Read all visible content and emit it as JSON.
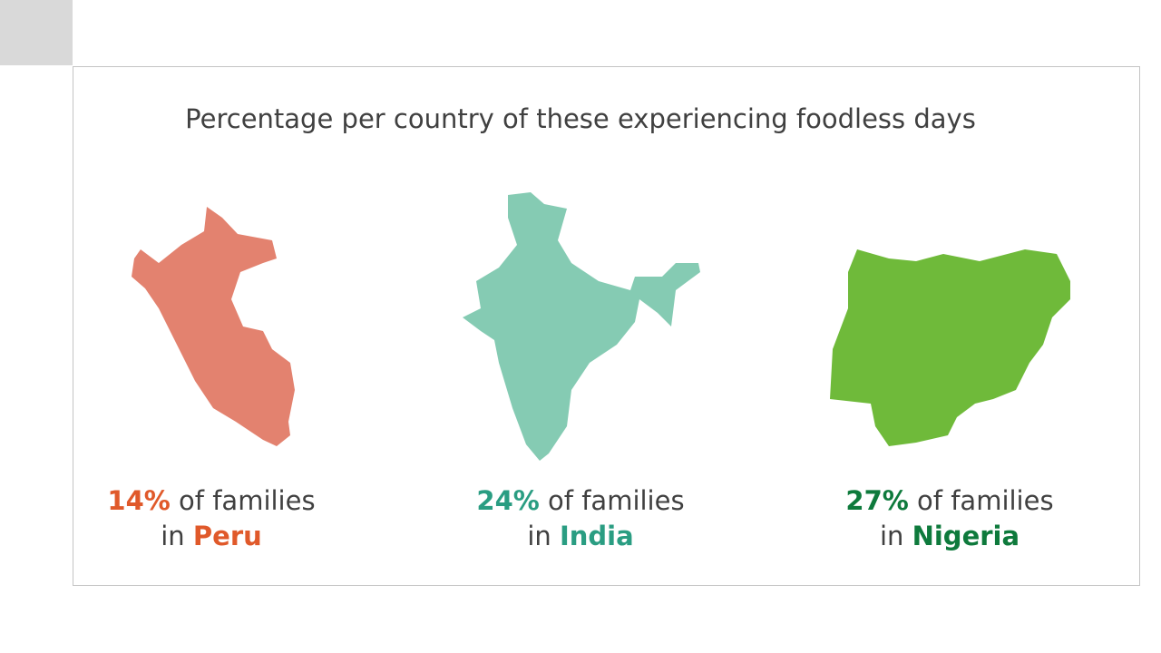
{
  "title": "Percentage per country of these experiencing foodless days",
  "items": [
    {
      "percent": "14%",
      "text": "of families",
      "prefix": "in",
      "country": "Peru"
    },
    {
      "percent": "24%",
      "text": "of families",
      "prefix": "in",
      "country": "India"
    },
    {
      "percent": "27%",
      "text": "of families",
      "prefix": "in",
      "country": "Nigeria"
    }
  ]
}
